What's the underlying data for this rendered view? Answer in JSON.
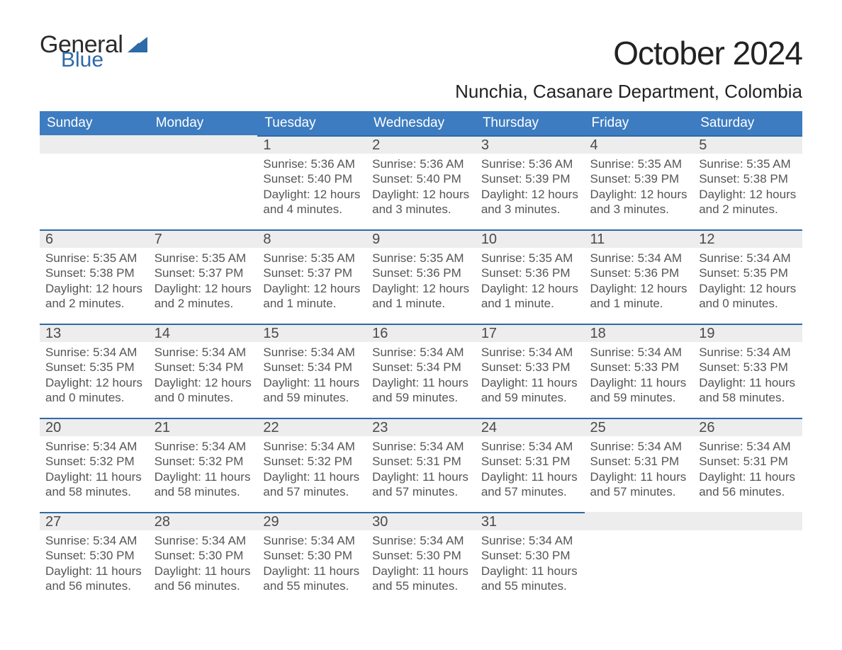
{
  "brand": {
    "word1": "General",
    "word2": "Blue"
  },
  "title": "October 2024",
  "subtitle": "Nunchia, Casanare Department, Colombia",
  "colors": {
    "header_bg": "#3d7cc0",
    "header_line": "#2d6aa8",
    "logo_blue": "#2d6aa8",
    "row_bg": "#ededed",
    "page_bg": "#ffffff",
    "text": "#3a3a3a"
  },
  "typography": {
    "title_fontsize": 46,
    "subtitle_fontsize": 26,
    "header_fontsize": 19,
    "daynum_fontsize": 20,
    "body_fontsize": 17,
    "font_family": "Arial"
  },
  "calendar": {
    "type": "table",
    "columns": [
      "Sunday",
      "Monday",
      "Tuesday",
      "Wednesday",
      "Thursday",
      "Friday",
      "Saturday"
    ],
    "leading_blanks": 2,
    "days": [
      {
        "n": 1,
        "sunrise": "5:36 AM",
        "sunset": "5:40 PM",
        "daylight": "12 hours and 4 minutes."
      },
      {
        "n": 2,
        "sunrise": "5:36 AM",
        "sunset": "5:40 PM",
        "daylight": "12 hours and 3 minutes."
      },
      {
        "n": 3,
        "sunrise": "5:36 AM",
        "sunset": "5:39 PM",
        "daylight": "12 hours and 3 minutes."
      },
      {
        "n": 4,
        "sunrise": "5:35 AM",
        "sunset": "5:39 PM",
        "daylight": "12 hours and 3 minutes."
      },
      {
        "n": 5,
        "sunrise": "5:35 AM",
        "sunset": "5:38 PM",
        "daylight": "12 hours and 2 minutes."
      },
      {
        "n": 6,
        "sunrise": "5:35 AM",
        "sunset": "5:38 PM",
        "daylight": "12 hours and 2 minutes."
      },
      {
        "n": 7,
        "sunrise": "5:35 AM",
        "sunset": "5:37 PM",
        "daylight": "12 hours and 2 minutes."
      },
      {
        "n": 8,
        "sunrise": "5:35 AM",
        "sunset": "5:37 PM",
        "daylight": "12 hours and 1 minute."
      },
      {
        "n": 9,
        "sunrise": "5:35 AM",
        "sunset": "5:36 PM",
        "daylight": "12 hours and 1 minute."
      },
      {
        "n": 10,
        "sunrise": "5:35 AM",
        "sunset": "5:36 PM",
        "daylight": "12 hours and 1 minute."
      },
      {
        "n": 11,
        "sunrise": "5:34 AM",
        "sunset": "5:36 PM",
        "daylight": "12 hours and 1 minute."
      },
      {
        "n": 12,
        "sunrise": "5:34 AM",
        "sunset": "5:35 PM",
        "daylight": "12 hours and 0 minutes."
      },
      {
        "n": 13,
        "sunrise": "5:34 AM",
        "sunset": "5:35 PM",
        "daylight": "12 hours and 0 minutes."
      },
      {
        "n": 14,
        "sunrise": "5:34 AM",
        "sunset": "5:34 PM",
        "daylight": "12 hours and 0 minutes."
      },
      {
        "n": 15,
        "sunrise": "5:34 AM",
        "sunset": "5:34 PM",
        "daylight": "11 hours and 59 minutes."
      },
      {
        "n": 16,
        "sunrise": "5:34 AM",
        "sunset": "5:34 PM",
        "daylight": "11 hours and 59 minutes."
      },
      {
        "n": 17,
        "sunrise": "5:34 AM",
        "sunset": "5:33 PM",
        "daylight": "11 hours and 59 minutes."
      },
      {
        "n": 18,
        "sunrise": "5:34 AM",
        "sunset": "5:33 PM",
        "daylight": "11 hours and 59 minutes."
      },
      {
        "n": 19,
        "sunrise": "5:34 AM",
        "sunset": "5:33 PM",
        "daylight": "11 hours and 58 minutes."
      },
      {
        "n": 20,
        "sunrise": "5:34 AM",
        "sunset": "5:32 PM",
        "daylight": "11 hours and 58 minutes."
      },
      {
        "n": 21,
        "sunrise": "5:34 AM",
        "sunset": "5:32 PM",
        "daylight": "11 hours and 58 minutes."
      },
      {
        "n": 22,
        "sunrise": "5:34 AM",
        "sunset": "5:32 PM",
        "daylight": "11 hours and 57 minutes."
      },
      {
        "n": 23,
        "sunrise": "5:34 AM",
        "sunset": "5:31 PM",
        "daylight": "11 hours and 57 minutes."
      },
      {
        "n": 24,
        "sunrise": "5:34 AM",
        "sunset": "5:31 PM",
        "daylight": "11 hours and 57 minutes."
      },
      {
        "n": 25,
        "sunrise": "5:34 AM",
        "sunset": "5:31 PM",
        "daylight": "11 hours and 57 minutes."
      },
      {
        "n": 26,
        "sunrise": "5:34 AM",
        "sunset": "5:31 PM",
        "daylight": "11 hours and 56 minutes."
      },
      {
        "n": 27,
        "sunrise": "5:34 AM",
        "sunset": "5:30 PM",
        "daylight": "11 hours and 56 minutes."
      },
      {
        "n": 28,
        "sunrise": "5:34 AM",
        "sunset": "5:30 PM",
        "daylight": "11 hours and 56 minutes."
      },
      {
        "n": 29,
        "sunrise": "5:34 AM",
        "sunset": "5:30 PM",
        "daylight": "11 hours and 55 minutes."
      },
      {
        "n": 30,
        "sunrise": "5:34 AM",
        "sunset": "5:30 PM",
        "daylight": "11 hours and 55 minutes."
      },
      {
        "n": 31,
        "sunrise": "5:34 AM",
        "sunset": "5:30 PM",
        "daylight": "11 hours and 55 minutes."
      }
    ],
    "labels": {
      "sunrise": "Sunrise:",
      "sunset": "Sunset:",
      "daylight": "Daylight:"
    }
  }
}
